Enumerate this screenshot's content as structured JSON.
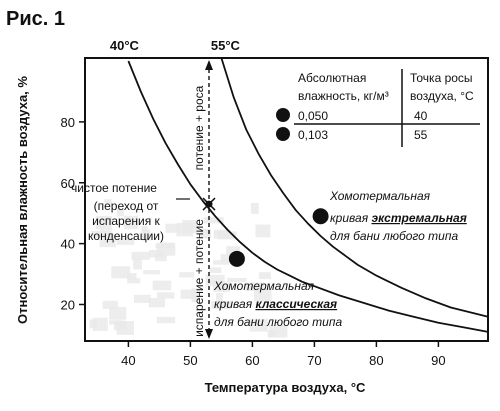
{
  "figure_label": "Рис. 1",
  "colors": {
    "ink": "#111111",
    "background": "#ffffff",
    "plot_noise": "#e9e9e9"
  },
  "chart_data": {
    "type": "line",
    "title": "",
    "xlabel": "Температура воздуха, °С",
    "ylabel": "Относительная влажность воздуха, %",
    "xlim": [
      33,
      98
    ],
    "ylim": [
      8,
      101
    ],
    "x_ticks": [
      40,
      50,
      60,
      70,
      80,
      90
    ],
    "y_ticks": [
      20,
      40,
      60,
      80
    ],
    "grid": false,
    "series": [
      {
        "name": "40°С",
        "x": [
          40,
          42,
          44,
          46,
          48,
          50,
          52,
          54,
          56,
          58,
          60,
          62,
          64,
          66,
          68,
          70,
          74,
          78,
          82,
          86,
          90,
          94,
          98
        ],
        "y": [
          100,
          90,
          81,
          73,
          66,
          59.5,
          54,
          49,
          44.5,
          40.5,
          37,
          34,
          31.5,
          29.5,
          27.5,
          26,
          23,
          20.5,
          18,
          16,
          14,
          12.5,
          11
        ]
      },
      {
        "name": "55°С",
        "x": [
          55,
          57,
          59,
          61,
          63,
          65,
          67,
          69,
          71,
          73,
          75,
          77,
          80,
          84,
          88,
          92,
          95,
          98
        ],
        "y": [
          101,
          88,
          77.5,
          69.5,
          62.5,
          56.5,
          51,
          46.5,
          42.5,
          39,
          36,
          33,
          29.5,
          25.5,
          22,
          19,
          17.5,
          16
        ]
      }
    ],
    "vertical_line": {
      "x": 53
    },
    "marked_point": {
      "x": 53,
      "y": 53
    },
    "markers": [
      {
        "x": 71,
        "y": 49
      },
      {
        "x": 57.5,
        "y": 35
      }
    ],
    "annotations": {
      "clean_sweat": [
        "чистое потение",
        "(переход от",
        "испарения к",
        "конденсации)"
      ],
      "above_line": "потение + роса",
      "below_line": "испарение + потение",
      "extremal": {
        "l1": "Хомотермальная",
        "l2a": "кривая",
        "l2b": "экстремальная",
        "l3": "для бани любого типа"
      },
      "classic": {
        "l1": "Хомотермальная",
        "l2a": "кривая",
        "l2b": "классическая",
        "l3": "для бани любого типа"
      }
    },
    "table": {
      "header_left": [
        "Абсолютная",
        "влажность, кг/м³"
      ],
      "header_right": [
        "Точка росы",
        "воздуха, °С"
      ],
      "rows": [
        {
          "abs_humidity": "0,050",
          "dew_point": "40"
        },
        {
          "abs_humidity": "0,103",
          "dew_point": "55"
        }
      ]
    }
  }
}
